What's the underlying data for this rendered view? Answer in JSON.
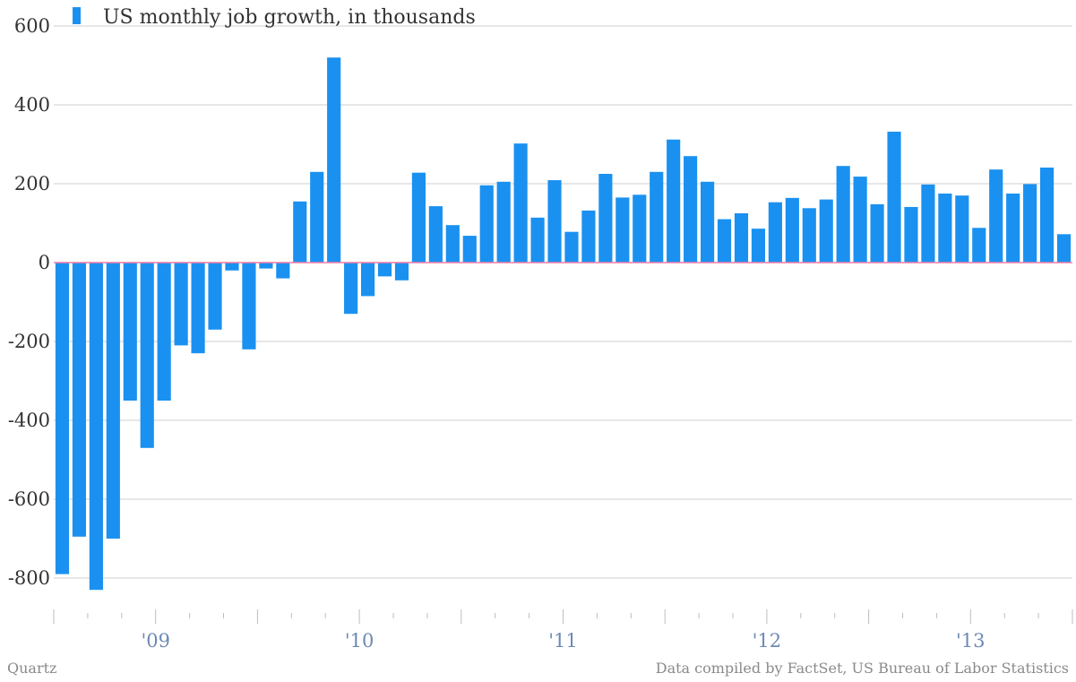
{
  "colors": {
    "bar": "#1a91f0",
    "grid": "#cfcfcf",
    "zero_line": "#f47aa6",
    "axis": "#bdbdbd",
    "tick_label": "#6d8ab4",
    "text": "#333333"
  },
  "chart_data": {
    "type": "bar",
    "title": "",
    "legend": {
      "label": "US monthly job growth, in thousands",
      "position": "top-left"
    },
    "xlabel": "",
    "ylabel": "",
    "ylim": [
      -880,
      600
    ],
    "yticks": [
      600,
      400,
      200,
      0,
      -200,
      -400,
      -600,
      -800
    ],
    "ytick_labels": [
      "600",
      "400",
      "200",
      "0",
      "-200",
      "-400",
      "-600",
      "-800"
    ],
    "xtick_labels": [
      {
        "label": "'09",
        "at_index": 6
      },
      {
        "label": "'10",
        "at_index": 18
      },
      {
        "label": "'11",
        "at_index": 30
      },
      {
        "label": "'12",
        "at_index": 42
      },
      {
        "label": "'13",
        "at_index": 54
      }
    ],
    "grid": true,
    "series": [
      {
        "name": "US monthly job growth, in thousands",
        "values": [
          -790,
          -695,
          -830,
          -700,
          -350,
          -470,
          -350,
          -210,
          -230,
          -170,
          -20,
          -220,
          -15,
          -40,
          155,
          230,
          520,
          -130,
          -85,
          -35,
          -45,
          228,
          143,
          95,
          68,
          196,
          205,
          302,
          114,
          209,
          78,
          132,
          225,
          165,
          172,
          230,
          312,
          270,
          205,
          110,
          125,
          86,
          153,
          164,
          138,
          160,
          245,
          218,
          148,
          332,
          141,
          198,
          175,
          170,
          88,
          236,
          175,
          199,
          241,
          72
        ]
      }
    ]
  },
  "footer": {
    "source_left": "Quartz",
    "source_right": "Data compiled by FactSet, US Bureau of Labor Statistics"
  }
}
